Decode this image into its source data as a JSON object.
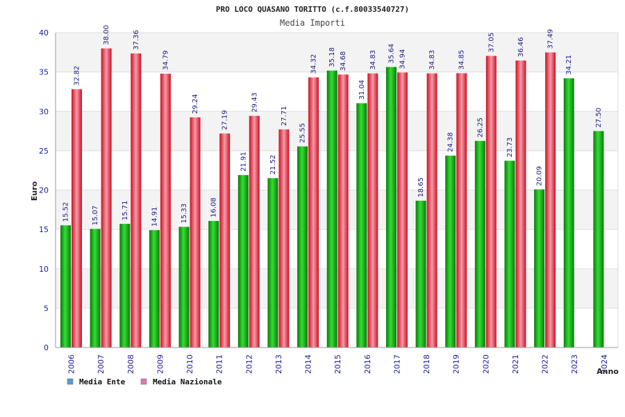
{
  "chart_data": {
    "type": "bar",
    "title": "PRO LOCO QUASANO TORITTO (c.f.80033540727)",
    "subtitle": "Media Importi",
    "xlabel": "Anno",
    "ylabel": "Euro",
    "ylim": [
      0,
      40
    ],
    "yticks": [
      0,
      5,
      10,
      15,
      20,
      25,
      30,
      35,
      40
    ],
    "grid": true,
    "legend_position": "bottom-left",
    "categories": [
      "2006",
      "2007",
      "2008",
      "2009",
      "2010",
      "2011",
      "2012",
      "2013",
      "2014",
      "2015",
      "2016",
      "2017",
      "2018",
      "2019",
      "2020",
      "2021",
      "2022",
      "2023",
      "2024"
    ],
    "series": [
      {
        "name": "Media Ente",
        "color": "#22aa22",
        "legend_color": "#5599dd",
        "values": [
          15.52,
          15.07,
          15.71,
          14.91,
          15.33,
          16.08,
          21.91,
          21.52,
          25.55,
          35.18,
          31.04,
          35.64,
          18.65,
          24.38,
          26.25,
          23.73,
          20.09,
          34.21,
          27.5
        ],
        "labels": [
          "15.52",
          "15.07",
          "15.71",
          "14.91",
          "15.33",
          "16.08",
          "21.91",
          "21.52",
          "25.55",
          "35.18",
          "31.04",
          "35.64",
          "18.65",
          "24.38",
          "26.25",
          "23.73",
          "20.09",
          "34.21",
          "27.50"
        ]
      },
      {
        "name": "Media Nazionale",
        "color": "#ee2233",
        "legend_color": "#dd77aa",
        "values": [
          32.82,
          38.0,
          37.36,
          34.79,
          29.24,
          27.19,
          29.43,
          27.71,
          34.32,
          34.68,
          34.83,
          34.94,
          34.83,
          34.85,
          37.05,
          36.46,
          37.49,
          null,
          null
        ],
        "labels": [
          "32.82",
          "38.00",
          "37.36",
          "34.79",
          "29.24",
          "27.19",
          "29.43",
          "27.71",
          "34.32",
          "34.68",
          "34.83",
          "34.94",
          "34.83",
          "34.85",
          "37.05",
          "36.46",
          "37.49",
          null,
          null
        ]
      }
    ]
  }
}
